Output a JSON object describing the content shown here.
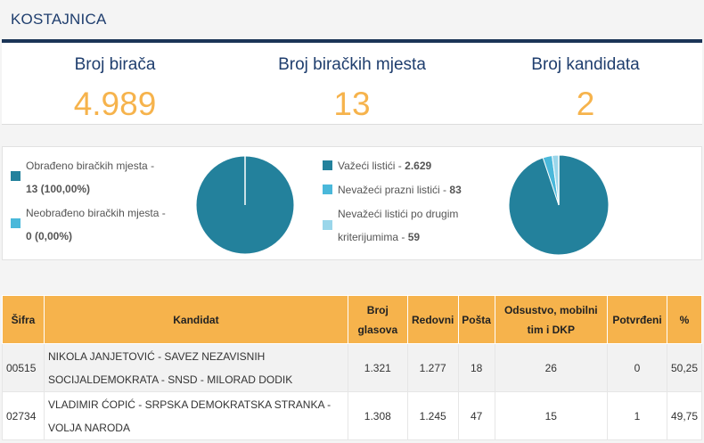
{
  "page": {
    "title": "KOSTAJNICA"
  },
  "stats": [
    {
      "label": "Broj birača",
      "value": "4.989"
    },
    {
      "label": "Broj biračkih mjesta",
      "value": "13"
    },
    {
      "label": "Broj kandidata",
      "value": "2"
    }
  ],
  "colors": {
    "dark_teal": "#23819c",
    "light_blue": "#4ab8da",
    "pale_blue": "#9ad6ea",
    "orange": "#f6b34c",
    "navy": "#1b3557"
  },
  "left_chart": {
    "legend": [
      {
        "label": "Obrađeno biračkih mjesta -",
        "value": "13 (100,00%)"
      },
      {
        "label": "Neobrađeno biračkih mjesta -",
        "value": "0 (0,00%)"
      }
    ],
    "chart_data": {
      "type": "pie",
      "categories": [
        "Obrađeno biračkih mjesta",
        "Neobrađeno biračkih mjesta"
      ],
      "values": [
        13,
        0
      ]
    }
  },
  "right_chart": {
    "legend": [
      {
        "label": "Važeći listići -",
        "value": "2.629"
      },
      {
        "label": "Nevažeći prazni listići -",
        "value": "83"
      },
      {
        "label_line1": "Nevažeći listići po drugim",
        "label_line2": "kriterijumima -",
        "value": "59"
      }
    ],
    "chart_data": {
      "type": "pie",
      "categories": [
        "Važeći listići",
        "Nevažeći prazni listići",
        "Nevažeći listići po drugim kriterijumima"
      ],
      "values": [
        2629,
        83,
        59
      ]
    }
  },
  "table": {
    "headers": {
      "code": "Šifra",
      "candidate": "Kandidat",
      "votes_line1": "Broj",
      "votes_line2": "glasova",
      "regular": "Redovni",
      "mail": "Pošta",
      "absent_line1": "Odsustvo, mobilni",
      "absent_line2": "tim i DKP",
      "confirmed": "Potvrđeni",
      "percent": "%"
    },
    "rows": [
      {
        "code": "00515",
        "name_line1": "NIKOLA JANJETOVIĆ - SAVEZ NEZAVISNIH",
        "name_line2": "SOCIJALDEMOKRATA - SNSD - MILORAD DODIK",
        "votes": "1.321",
        "regular": "1.277",
        "mail": "18",
        "absent": "26",
        "confirmed": "0",
        "percent": "50,25"
      },
      {
        "code": "02734",
        "name_line1": "VLADIMIR ĆOPIĆ - SRPSKA DEMOKRATSKA STRANKA -",
        "name_line2": "VOLJA NARODA",
        "votes": "1.308",
        "regular": "1.245",
        "mail": "47",
        "absent": "15",
        "confirmed": "1",
        "percent": "49,75"
      }
    ]
  }
}
